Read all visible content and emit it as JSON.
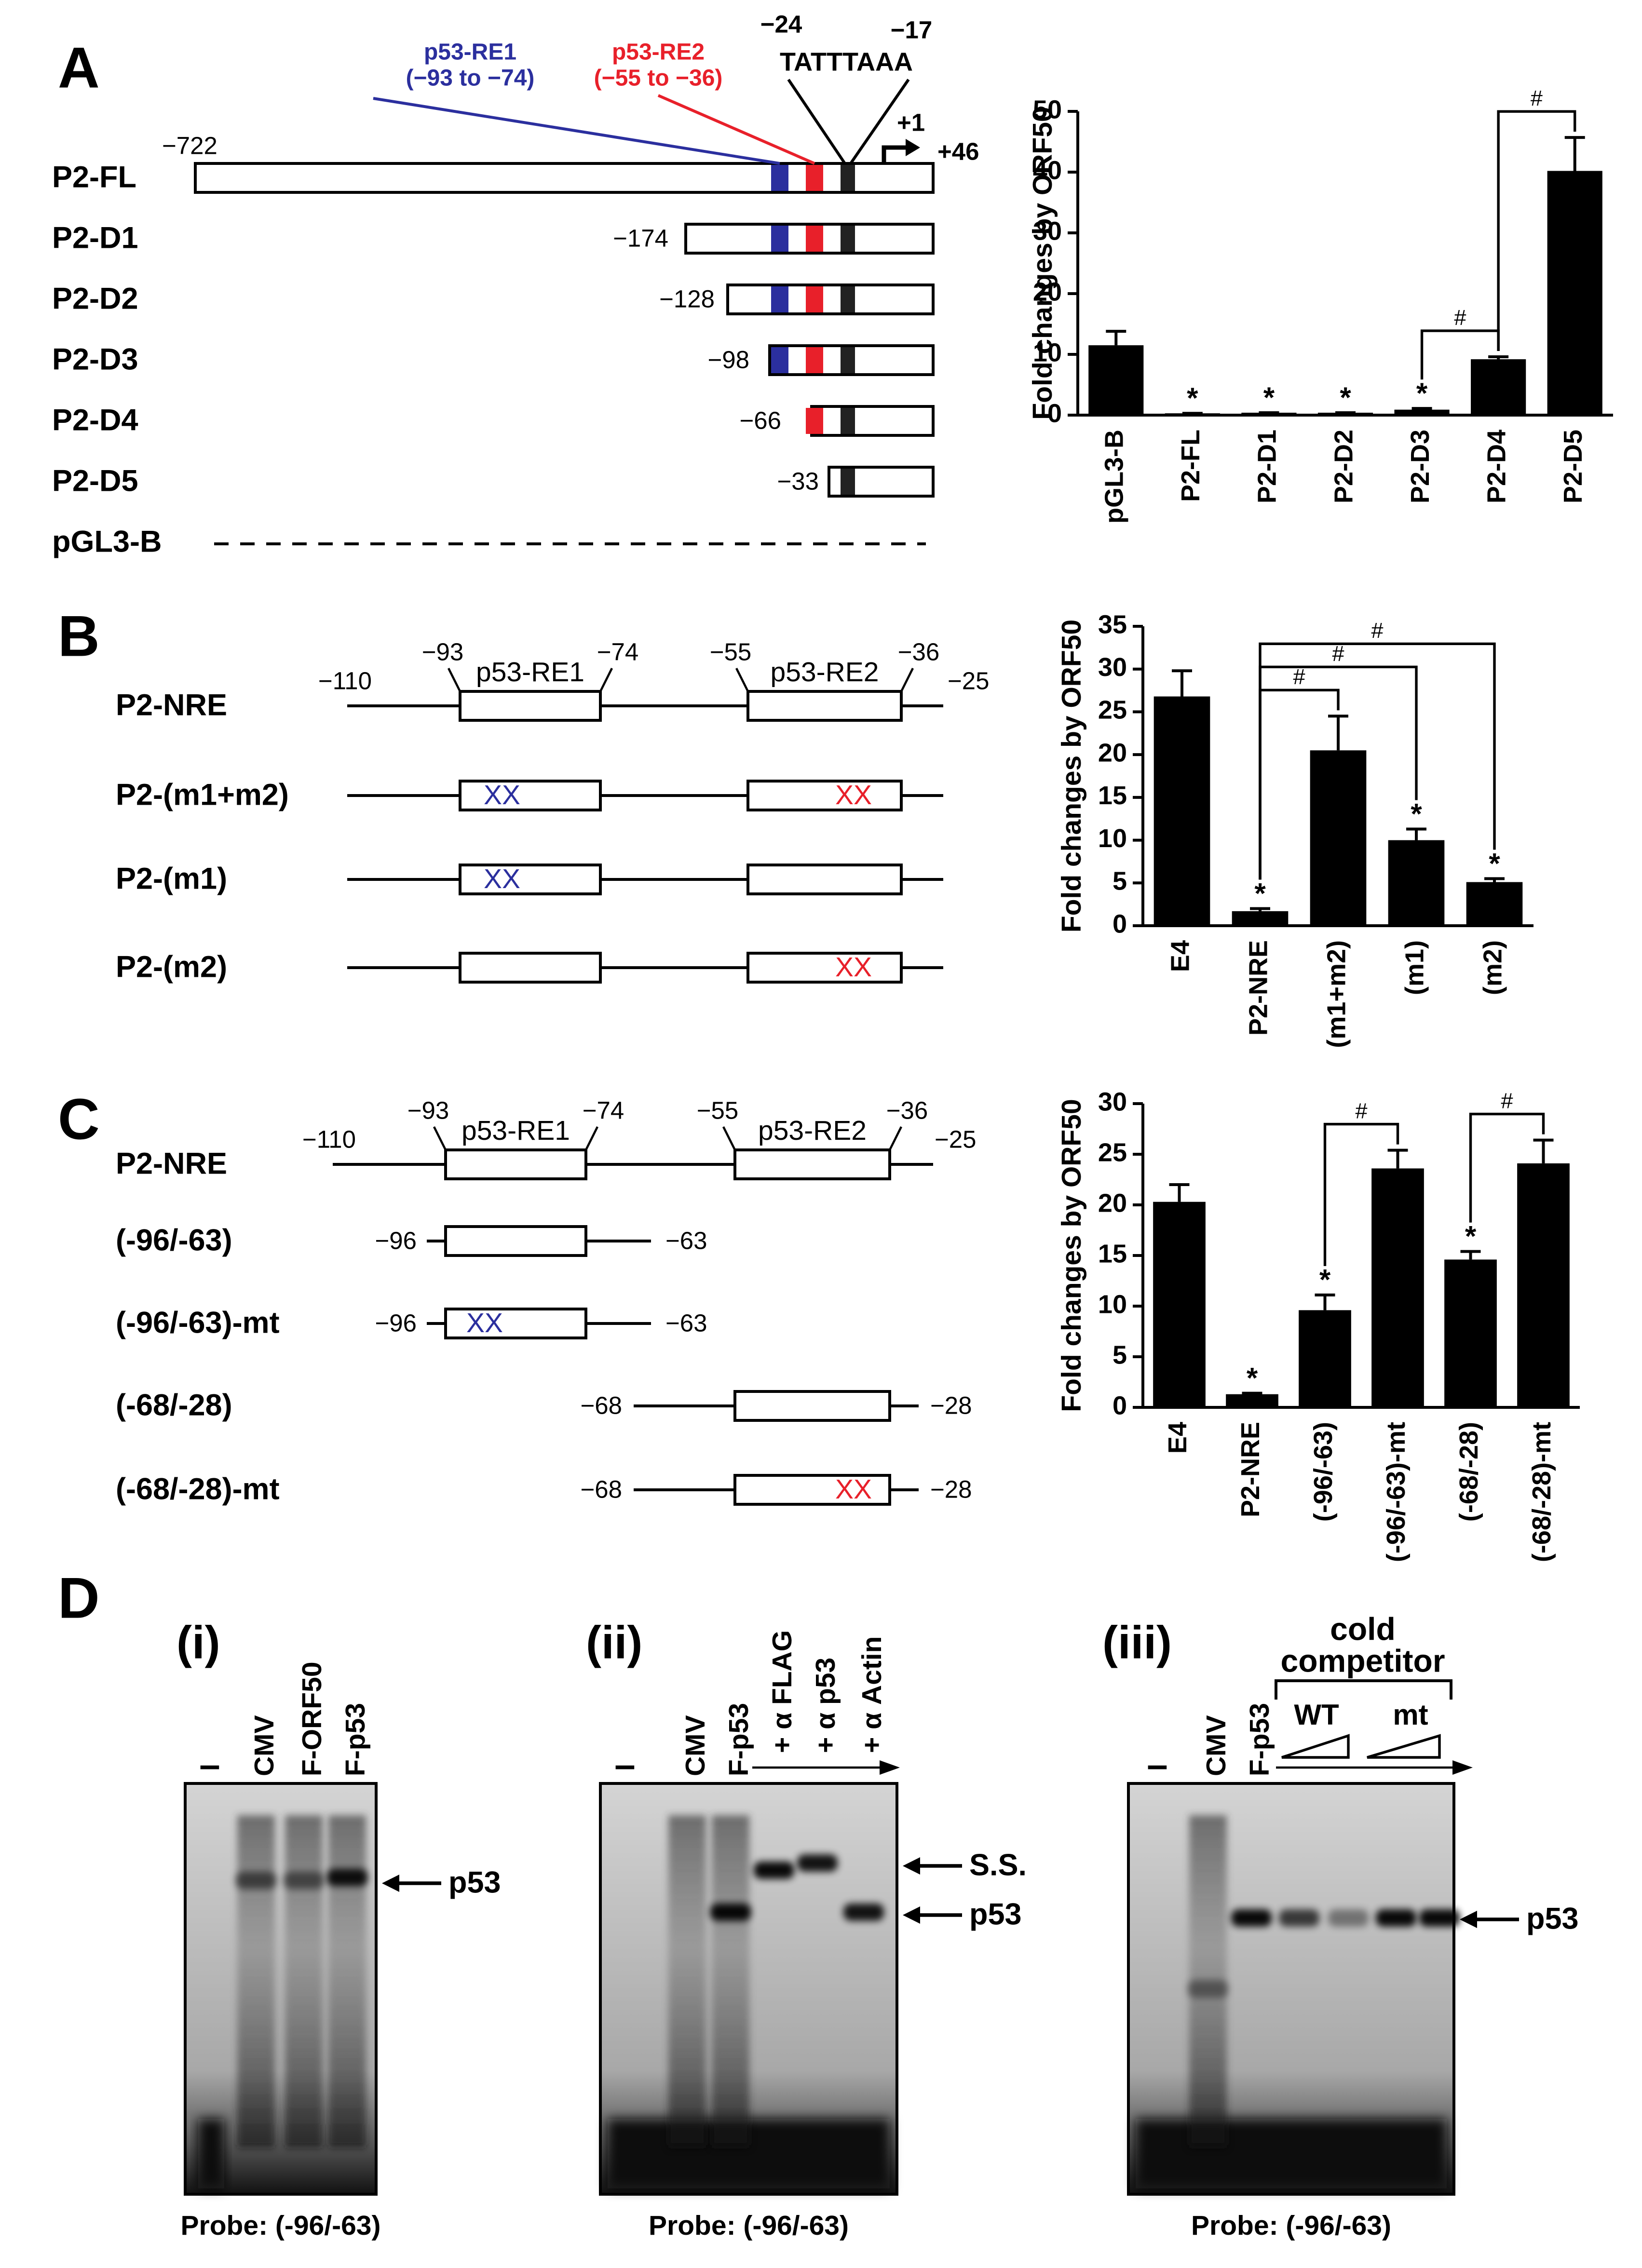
{
  "panel_labels": [
    "A",
    "B",
    "C",
    "D"
  ],
  "chart_data": [
    {
      "type": "bar",
      "ylabel": "Fold changes by ORF50",
      "color": "#000000",
      "categories": [
        "pGL3-B",
        "P2-FL",
        "P2-D1",
        "P2-D2",
        "P2-D3",
        "P2-D4",
        "P2-D5"
      ],
      "values": [
        11.5,
        0.3,
        0.4,
        0.4,
        0.9,
        9.2,
        40.2
      ],
      "errors": [
        2.3,
        0,
        0,
        0,
        0.2,
        0.4,
        5.5
      ],
      "significance": [
        null,
        "*",
        "*",
        "*",
        "*",
        null,
        null
      ],
      "brackets": [
        {
          "from": "P2-D3",
          "to": "P2-D4",
          "label": "#"
        },
        {
          "from": "P2-D4",
          "to": "P2-D5",
          "label": "#"
        }
      ],
      "ylim": [
        0,
        50
      ],
      "yticks": [
        0,
        10,
        20,
        30,
        40,
        50
      ]
    },
    {
      "type": "bar",
      "ylabel": "Fold changes by ORF50",
      "color": "#000000",
      "categories": [
        "E4",
        "P2-NRE",
        "(m1+m2)",
        "(m1)",
        "(m2)"
      ],
      "values": [
        26.8,
        1.7,
        20.5,
        10.0,
        5.1
      ],
      "errors": [
        3.0,
        0.3,
        4.0,
        1.3,
        0.4
      ],
      "significance": [
        null,
        "*",
        null,
        "*",
        "*"
      ],
      "brackets": [
        {
          "from": "P2-NRE",
          "to": "(m1+m2)",
          "label": "#"
        },
        {
          "from": "P2-NRE",
          "to": "(m1)",
          "label": "#"
        },
        {
          "from": "P2-NRE",
          "to": "(m2)",
          "label": "#"
        }
      ],
      "ylim": [
        0,
        35
      ],
      "yticks": [
        0,
        5,
        10,
        15,
        20,
        25,
        30,
        35
      ]
    },
    {
      "type": "bar",
      "ylabel": "Fold changes by ORF50",
      "color": "#000000",
      "categories": [
        "E4",
        "P2-NRE",
        "(-96/-63)",
        "(-96/-63)-mt",
        "(-68/-28)",
        "(-68/-28)-mt"
      ],
      "values": [
        20.3,
        1.3,
        9.6,
        23.6,
        14.6,
        24.1
      ],
      "errors": [
        1.7,
        0.1,
        1.5,
        1.8,
        0.8,
        2.3
      ],
      "significance": [
        null,
        "*",
        "*",
        null,
        "*",
        null
      ],
      "brackets": [
        {
          "from": "(-96/-63)",
          "to": "(-96/-63)-mt",
          "label": "#"
        },
        {
          "from": "(-68/-28)",
          "to": "(-68/-28)-mt",
          "label": "#"
        }
      ],
      "ylim": [
        0,
        30
      ],
      "yticks": [
        0,
        5,
        10,
        15,
        20,
        25,
        30
      ]
    }
  ],
  "diagram_a": {
    "constructs": [
      {
        "name": "P2-FL",
        "start": "−722"
      },
      {
        "name": "P2-D1",
        "start": "−174"
      },
      {
        "name": "P2-D2",
        "start": "−128"
      },
      {
        "name": "P2-D3",
        "start": "−98"
      },
      {
        "name": "P2-D4",
        "start": "−66"
      },
      {
        "name": "P2-D5",
        "start": "−33"
      }
    ],
    "control": "pGL3-B",
    "re1": {
      "label": "p53-RE1",
      "range": "(−93 to −74)"
    },
    "re2": {
      "label": "p53-RE2",
      "range": "(−55 to −36)"
    },
    "tata": {
      "label": "TATTTAAA",
      "start": "−24",
      "end": "−17"
    },
    "tss": "+1",
    "end": "+46"
  },
  "diagram_b": {
    "constructs": [
      "P2-NRE",
      "P2-(m1+m2)",
      "P2-(m1)",
      "P2-(m2)"
    ],
    "coords": [
      "−110",
      "−93",
      "−74",
      "−55",
      "−36",
      "−25"
    ],
    "elements": [
      "p53-RE1",
      "p53-RE2"
    ],
    "mutation": "XX"
  },
  "diagram_c": {
    "constructs": [
      {
        "name": "P2-NRE"
      },
      {
        "name": "(-96/-63)",
        "start": "−96",
        "end": "−63"
      },
      {
        "name": "(-96/-63)-mt",
        "start": "−96",
        "end": "−63"
      },
      {
        "name": "(-68/-28)",
        "start": "−68",
        "end": "−28"
      },
      {
        "name": "(-68/-28)-mt",
        "start": "−68",
        "end": "−28"
      }
    ],
    "coords": [
      "−110",
      "−93",
      "−74",
      "−55",
      "−36",
      "−25"
    ],
    "elements": [
      "p53-RE1",
      "p53-RE2"
    ],
    "mutation": "XX"
  },
  "gels": [
    {
      "label": "(i)",
      "lanes": [
        "–",
        "CMV",
        "F-ORF50",
        "F-p53"
      ],
      "bands": [
        "p53"
      ],
      "probe": "Probe: (-96/-63)"
    },
    {
      "label": "(ii)",
      "lanes": [
        "–",
        "CMV",
        "F-p53",
        "+ α FLAG",
        "+ α p53",
        "+ α Actin"
      ],
      "bands": [
        "S.S.",
        "p53"
      ],
      "probe": "Probe: (-96/-63)"
    },
    {
      "label": "(iii)",
      "lanes": [
        "–",
        "CMV",
        "F-p53"
      ],
      "competitor": [
        "cold",
        "competitor"
      ],
      "competitor_types": [
        "WT",
        "mt"
      ],
      "bands": [
        "p53"
      ],
      "probe": "Probe: (-96/-63)"
    }
  ]
}
